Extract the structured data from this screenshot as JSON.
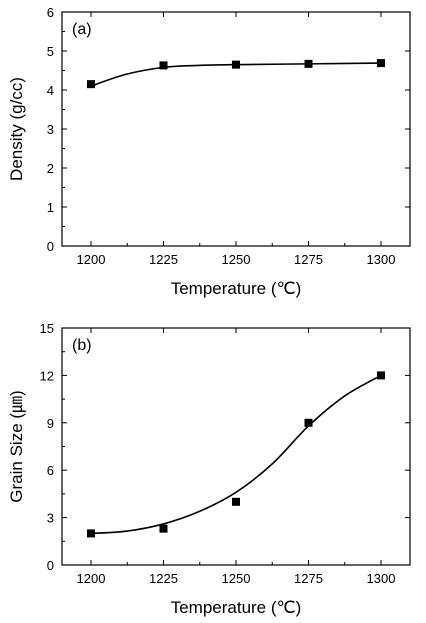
{
  "chart_data": [
    {
      "type": "scatter",
      "panel_label": "(a)",
      "xlabel": "Temperature (℃)",
      "ylabel": "Density (g/cc)",
      "xlim": [
        1190,
        1310
      ],
      "ylim": [
        0,
        6
      ],
      "xticks": [
        1200,
        1225,
        1250,
        1275,
        1300
      ],
      "yticks": [
        0,
        1,
        2,
        3,
        4,
        5,
        6
      ],
      "x": [
        1200,
        1225,
        1250,
        1275,
        1300
      ],
      "y": [
        4.15,
        4.63,
        4.65,
        4.67,
        4.69
      ],
      "fit": {
        "x": [
          1200,
          1212,
          1225,
          1237,
          1250,
          1275,
          1300
        ],
        "y": [
          4.1,
          4.4,
          4.58,
          4.63,
          4.65,
          4.67,
          4.69
        ]
      },
      "grid": false,
      "marker": "square",
      "color": "#000000"
    },
    {
      "type": "scatter",
      "panel_label": "(b)",
      "xlabel": "Temperature (℃)",
      "ylabel": "Grain Size (㎛)",
      "xlim": [
        1190,
        1310
      ],
      "ylim": [
        0,
        15
      ],
      "xticks": [
        1200,
        1225,
        1250,
        1275,
        1300
      ],
      "yticks": [
        0,
        3,
        6,
        9,
        12,
        15
      ],
      "x": [
        1200,
        1225,
        1250,
        1275,
        1300
      ],
      "y": [
        2.0,
        2.3,
        4.0,
        9.0,
        12.0
      ],
      "fit": {
        "x": [
          1200,
          1212.5,
          1225,
          1237.5,
          1250,
          1262.5,
          1275,
          1287.5,
          1300
        ],
        "y": [
          2.0,
          2.15,
          2.6,
          3.4,
          4.6,
          6.4,
          8.8,
          10.7,
          12.0
        ]
      },
      "grid": false,
      "marker": "square",
      "color": "#000000"
    }
  ]
}
